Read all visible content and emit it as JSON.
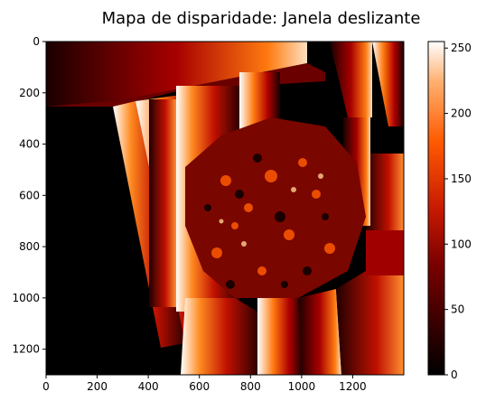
{
  "chart_data": {
    "type": "heatmap",
    "title": "Mapa de disparidade: Janela deslizante",
    "xlabel": "",
    "ylabel": "",
    "colormap": "gist_heat",
    "xlim": [
      0,
      1400
    ],
    "ylim": [
      1300,
      0
    ],
    "x_ticks": [
      0,
      200,
      400,
      600,
      800,
      1000,
      1200
    ],
    "y_ticks": [
      0,
      200,
      400,
      600,
      800,
      1000,
      1200
    ],
    "colorbar": {
      "range": [
        0,
        255
      ],
      "ticks": [
        0,
        50,
        100,
        150,
        200,
        250
      ]
    },
    "colors": {
      "low": "#000000",
      "mid": "#b30000",
      "high_mid": "#ff6600",
      "high": "#ffffff"
    }
  }
}
